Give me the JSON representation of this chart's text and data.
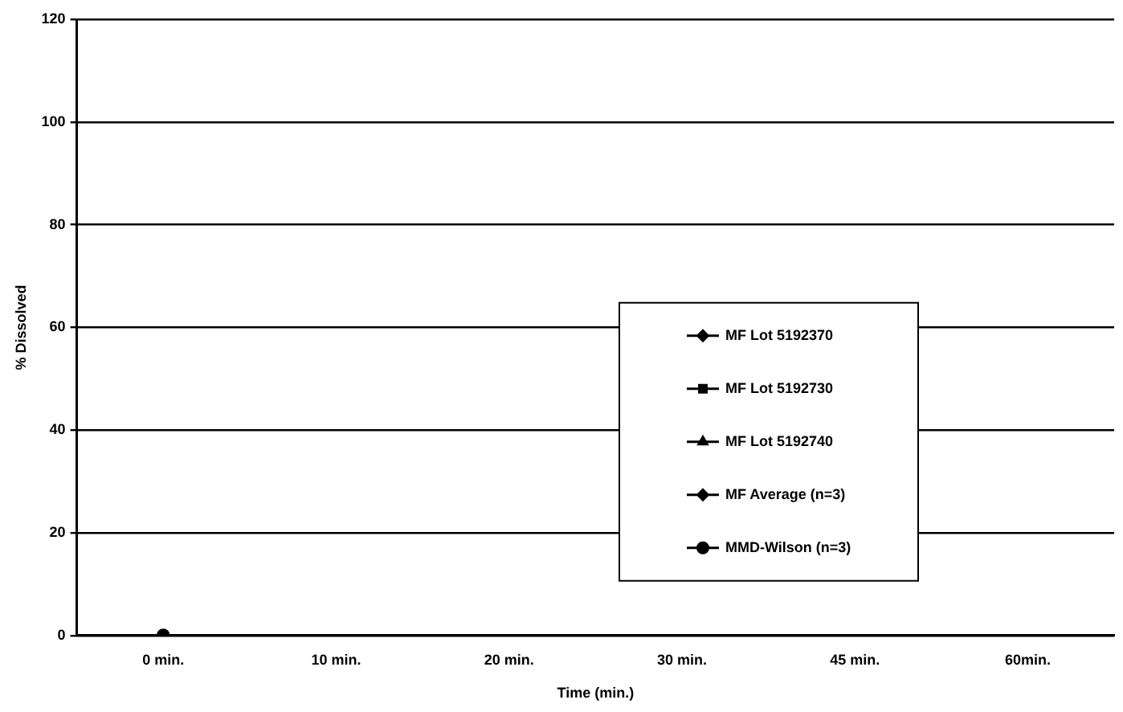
{
  "chart_data": {
    "type": "line",
    "xlabel": "Time (min.)",
    "ylabel": "% Dissolved",
    "categories": [
      "0 min.",
      "10 min.",
      "20 min.",
      "30 min.",
      "45 min.",
      "60min."
    ],
    "series": [
      {
        "name": "MF Lot 5192370",
        "color": "#000000",
        "marker": "diamond",
        "values": [
          null,
          null,
          null,
          null,
          null,
          null
        ]
      },
      {
        "name": "MF Lot 5192730",
        "color": "#000000",
        "marker": "square",
        "values": [
          null,
          null,
          null,
          null,
          null,
          null
        ]
      },
      {
        "name": "MF Lot 5192740",
        "color": "#000000",
        "marker": "triangle",
        "values": [
          null,
          null,
          null,
          null,
          null,
          null
        ]
      },
      {
        "name": "MF Average (n=3)",
        "color": "#000000",
        "marker": "diamond",
        "values": [
          null,
          null,
          null,
          null,
          null,
          null
        ]
      },
      {
        "name": "MMD-Wilson (n=3)",
        "color": "#000000",
        "marker": "circle",
        "values": [
          0,
          null,
          null,
          null,
          null,
          null
        ]
      }
    ],
    "ylim": [
      0,
      120
    ],
    "yticks": [
      0,
      20,
      40,
      60,
      80,
      100,
      120
    ],
    "grid": "y",
    "legend": "right"
  }
}
